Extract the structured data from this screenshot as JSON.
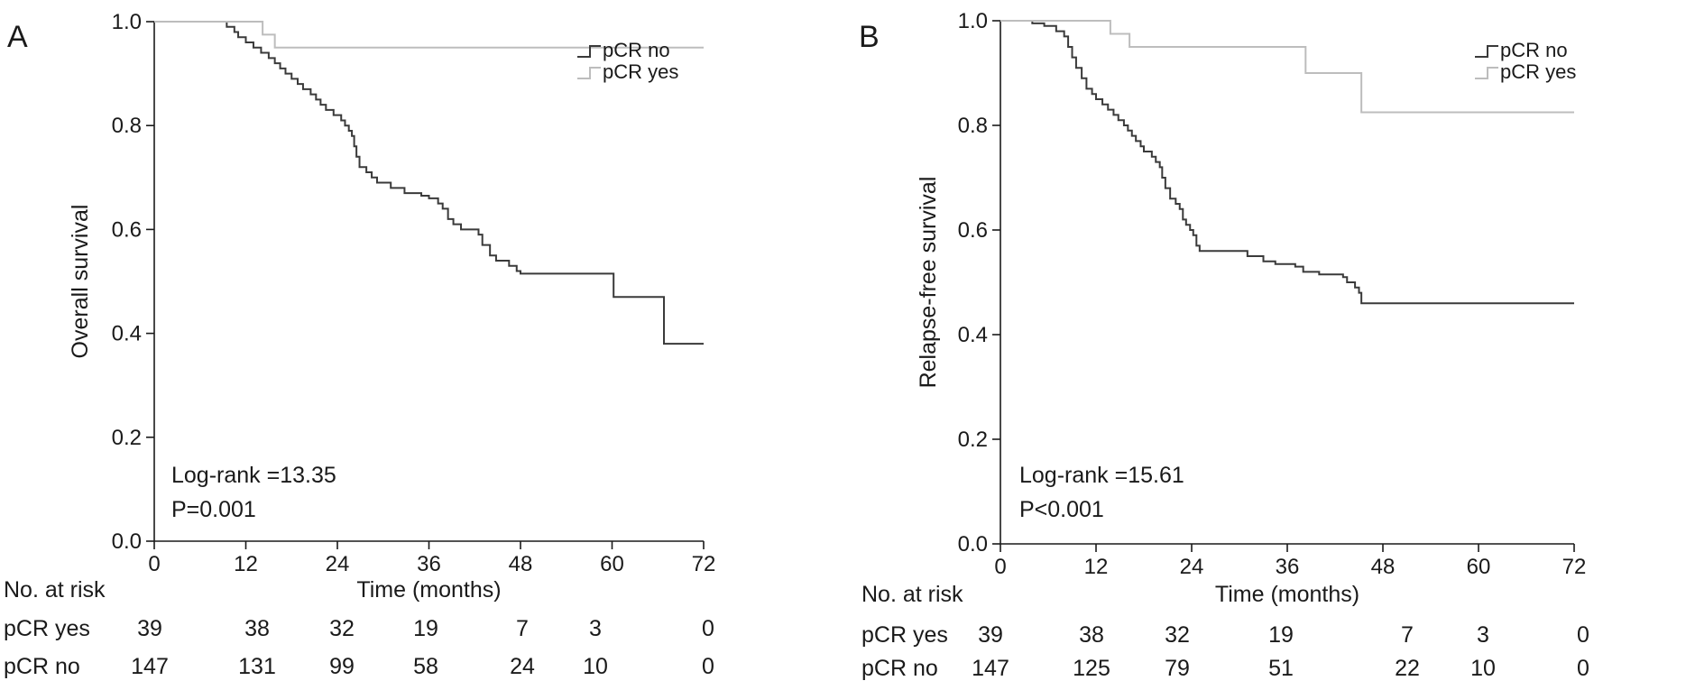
{
  "colors": {
    "pcr_no": "#3a3a3a",
    "pcr_yes": "#bdbdbd",
    "axis": "#1a1a1a",
    "text": "#1a1a1a"
  },
  "chart_data": [
    {
      "type": "line",
      "panel_label": "A",
      "xlabel": "Time (months)",
      "ylabel": "Overall survival",
      "xlim": [
        0,
        72
      ],
      "ylim": [
        0,
        1.0
      ],
      "x_ticks": [
        0,
        12,
        24,
        36,
        48,
        60,
        72
      ],
      "y_ticks": [
        "0.0",
        "0.2",
        "0.4",
        "0.6",
        "0.8",
        "1.0"
      ],
      "legend_position": "top-right",
      "series": [
        {
          "name": "pCR no",
          "color": "#3a3a3a",
          "points": [
            [
              0,
              1.0
            ],
            [
              9,
              1.0
            ],
            [
              9.5,
              0.99
            ],
            [
              10.5,
              0.98
            ],
            [
              11,
              0.97
            ],
            [
              12,
              0.96
            ],
            [
              13,
              0.95
            ],
            [
              14,
              0.94
            ],
            [
              15,
              0.93
            ],
            [
              15.8,
              0.92
            ],
            [
              16.5,
              0.91
            ],
            [
              17.2,
              0.9
            ],
            [
              18,
              0.89
            ],
            [
              18.8,
              0.88
            ],
            [
              19.5,
              0.87
            ],
            [
              20.5,
              0.86
            ],
            [
              21.2,
              0.85
            ],
            [
              21.8,
              0.84
            ],
            [
              22.5,
              0.83
            ],
            [
              23.5,
              0.82
            ],
            [
              24.5,
              0.81
            ],
            [
              25,
              0.8
            ],
            [
              25.5,
              0.79
            ],
            [
              25.9,
              0.78
            ],
            [
              26.2,
              0.76
            ],
            [
              26.5,
              0.74
            ],
            [
              26.9,
              0.72
            ],
            [
              27.8,
              0.71
            ],
            [
              28.5,
              0.7
            ],
            [
              29.2,
              0.69
            ],
            [
              31,
              0.68
            ],
            [
              32.8,
              0.67
            ],
            [
              35,
              0.665
            ],
            [
              36,
              0.66
            ],
            [
              37.2,
              0.65
            ],
            [
              37.8,
              0.64
            ],
            [
              38.5,
              0.62
            ],
            [
              39.2,
              0.61
            ],
            [
              40.2,
              0.6
            ],
            [
              42.5,
              0.59
            ],
            [
              43,
              0.57
            ],
            [
              44,
              0.55
            ],
            [
              44.8,
              0.54
            ],
            [
              46.5,
              0.53
            ],
            [
              47.5,
              0.52
            ],
            [
              48,
              0.515
            ],
            [
              57,
              0.515
            ],
            [
              60,
              0.515
            ],
            [
              60.2,
              0.47
            ],
            [
              66.5,
              0.47
            ],
            [
              66.8,
              0.38
            ],
            [
              72,
              0.38
            ]
          ]
        },
        {
          "name": "pCR yes",
          "color": "#bdbdbd",
          "points": [
            [
              0,
              1.0
            ],
            [
              14,
              1.0
            ],
            [
              14.2,
              0.975
            ],
            [
              15.5,
              0.975
            ],
            [
              15.8,
              0.95
            ],
            [
              72,
              0.95
            ]
          ]
        }
      ],
      "annotations": [
        "Log-rank =13.35",
        "P=0.001"
      ],
      "risk_table": {
        "header": "No. at risk",
        "times": [
          0,
          12,
          24,
          36,
          48,
          60,
          72
        ],
        "rows": [
          {
            "label": "pCR yes",
            "values": [
              "39",
              "38",
              "32",
              "19",
              "7",
              "3",
              "0"
            ]
          },
          {
            "label": "pCR no",
            "values": [
              "147",
              "131",
              "99",
              "58",
              "24",
              "10",
              "0"
            ]
          }
        ]
      }
    },
    {
      "type": "line",
      "panel_label": "B",
      "xlabel": "Time (months)",
      "ylabel": "Relapse-free survival",
      "xlim": [
        0,
        72
      ],
      "ylim": [
        0,
        1.0
      ],
      "x_ticks": [
        0,
        12,
        24,
        36,
        48,
        60,
        72
      ],
      "y_ticks": [
        "0.0",
        "0.2",
        "0.4",
        "0.6",
        "0.8",
        "1.0"
      ],
      "legend_position": "top-right",
      "series": [
        {
          "name": "pCR no",
          "color": "#3a3a3a",
          "points": [
            [
              0,
              1.0
            ],
            [
              3,
              1.0
            ],
            [
              4,
              0.995
            ],
            [
              5.5,
              0.99
            ],
            [
              7,
              0.98
            ],
            [
              8,
              0.97
            ],
            [
              8.5,
              0.95
            ],
            [
              9,
              0.93
            ],
            [
              9.5,
              0.91
            ],
            [
              10.2,
              0.89
            ],
            [
              10.8,
              0.87
            ],
            [
              11.5,
              0.86
            ],
            [
              12,
              0.85
            ],
            [
              12.8,
              0.84
            ],
            [
              13.5,
              0.83
            ],
            [
              14.2,
              0.82
            ],
            [
              14.8,
              0.81
            ],
            [
              15.5,
              0.8
            ],
            [
              16,
              0.79
            ],
            [
              16.5,
              0.78
            ],
            [
              17,
              0.77
            ],
            [
              17.6,
              0.76
            ],
            [
              18,
              0.75
            ],
            [
              19,
              0.74
            ],
            [
              19.5,
              0.73
            ],
            [
              20,
              0.72
            ],
            [
              20.3,
              0.7
            ],
            [
              20.7,
              0.68
            ],
            [
              21.3,
              0.66
            ],
            [
              22,
              0.65
            ],
            [
              22.5,
              0.64
            ],
            [
              22.9,
              0.62
            ],
            [
              23.3,
              0.61
            ],
            [
              23.8,
              0.6
            ],
            [
              24.2,
              0.59
            ],
            [
              24.6,
              0.57
            ],
            [
              25,
              0.56
            ],
            [
              30,
              0.56
            ],
            [
              31,
              0.55
            ],
            [
              33,
              0.54
            ],
            [
              34.5,
              0.535
            ],
            [
              37,
              0.53
            ],
            [
              38,
              0.52
            ],
            [
              40,
              0.515
            ],
            [
              43,
              0.51
            ],
            [
              43.5,
              0.5
            ],
            [
              44.5,
              0.49
            ],
            [
              45,
              0.48
            ],
            [
              45.3,
              0.46
            ],
            [
              72,
              0.46
            ]
          ]
        },
        {
          "name": "pCR yes",
          "color": "#bdbdbd",
          "points": [
            [
              0,
              1.0
            ],
            [
              13.5,
              1.0
            ],
            [
              13.8,
              0.975
            ],
            [
              15.8,
              0.975
            ],
            [
              16.2,
              0.95
            ],
            [
              38,
              0.95
            ],
            [
              38.3,
              0.9
            ],
            [
              45,
              0.9
            ],
            [
              45.3,
              0.825
            ],
            [
              72,
              0.825
            ]
          ]
        }
      ],
      "annotations": [
        "Log-rank =15.61",
        "P<0.001"
      ],
      "risk_table": {
        "header": "No. at risk",
        "times": [
          0,
          12,
          24,
          36,
          48,
          60,
          72
        ],
        "rows": [
          {
            "label": "pCR yes",
            "values": [
              "39",
              "38",
              "32",
              "19",
              "7",
              "3",
              "0"
            ]
          },
          {
            "label": "pCR no",
            "values": [
              "147",
              "125",
              "79",
              "51",
              "22",
              "10",
              "0"
            ]
          }
        ]
      }
    }
  ]
}
